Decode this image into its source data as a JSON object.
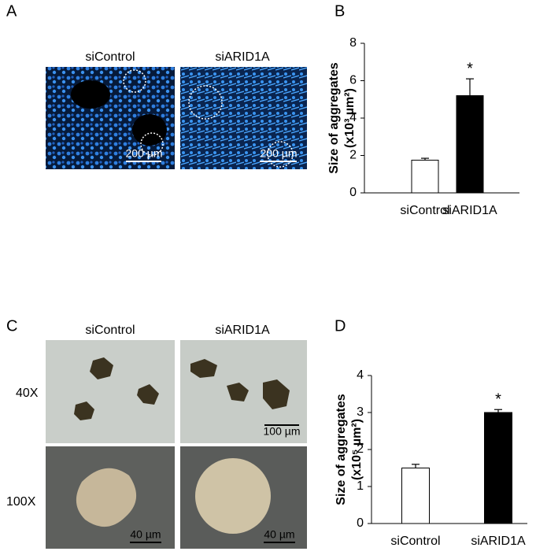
{
  "figure": {
    "A": {
      "label": "A",
      "columns": [
        "siControl",
        "siARID1A"
      ],
      "scale_bars": [
        "200 µm",
        "200 µm"
      ]
    },
    "C": {
      "label": "C",
      "columns": [
        "siControl",
        "siARID1A"
      ],
      "rows": [
        "40X",
        "100X"
      ],
      "scale_bars": [
        "100 µm",
        "40 µm",
        "40 µm"
      ]
    }
  },
  "chart_data": [
    {
      "type": "bar",
      "panel": "B",
      "categories": [
        "siControl",
        "siARID1A"
      ],
      "values": [
        1.75,
        5.2
      ],
      "errors": [
        0.1,
        0.9
      ],
      "colors": [
        "#ffffff",
        "#000000"
      ],
      "edgecolor": "#000000",
      "ylabel": [
        "Size of aggregates",
        "(x10³ µm²)"
      ],
      "ylim": [
        0,
        8
      ],
      "yticks": [
        0,
        2,
        4,
        6,
        8
      ],
      "value_annotations": [
        null,
        "*"
      ]
    },
    {
      "type": "bar",
      "panel": "D",
      "categories": [
        "siControl",
        "siARID1A"
      ],
      "values": [
        1.5,
        3.0
      ],
      "errors": [
        0.1,
        0.08
      ],
      "colors": [
        "#ffffff",
        "#000000"
      ],
      "edgecolor": "#000000",
      "ylabel": [
        "Size of aggregates",
        "(x10⁵ µm²)"
      ],
      "ylim": [
        0,
        4
      ],
      "yticks": [
        0,
        1,
        2,
        3,
        4
      ],
      "value_annotations": [
        null,
        "*"
      ]
    }
  ]
}
